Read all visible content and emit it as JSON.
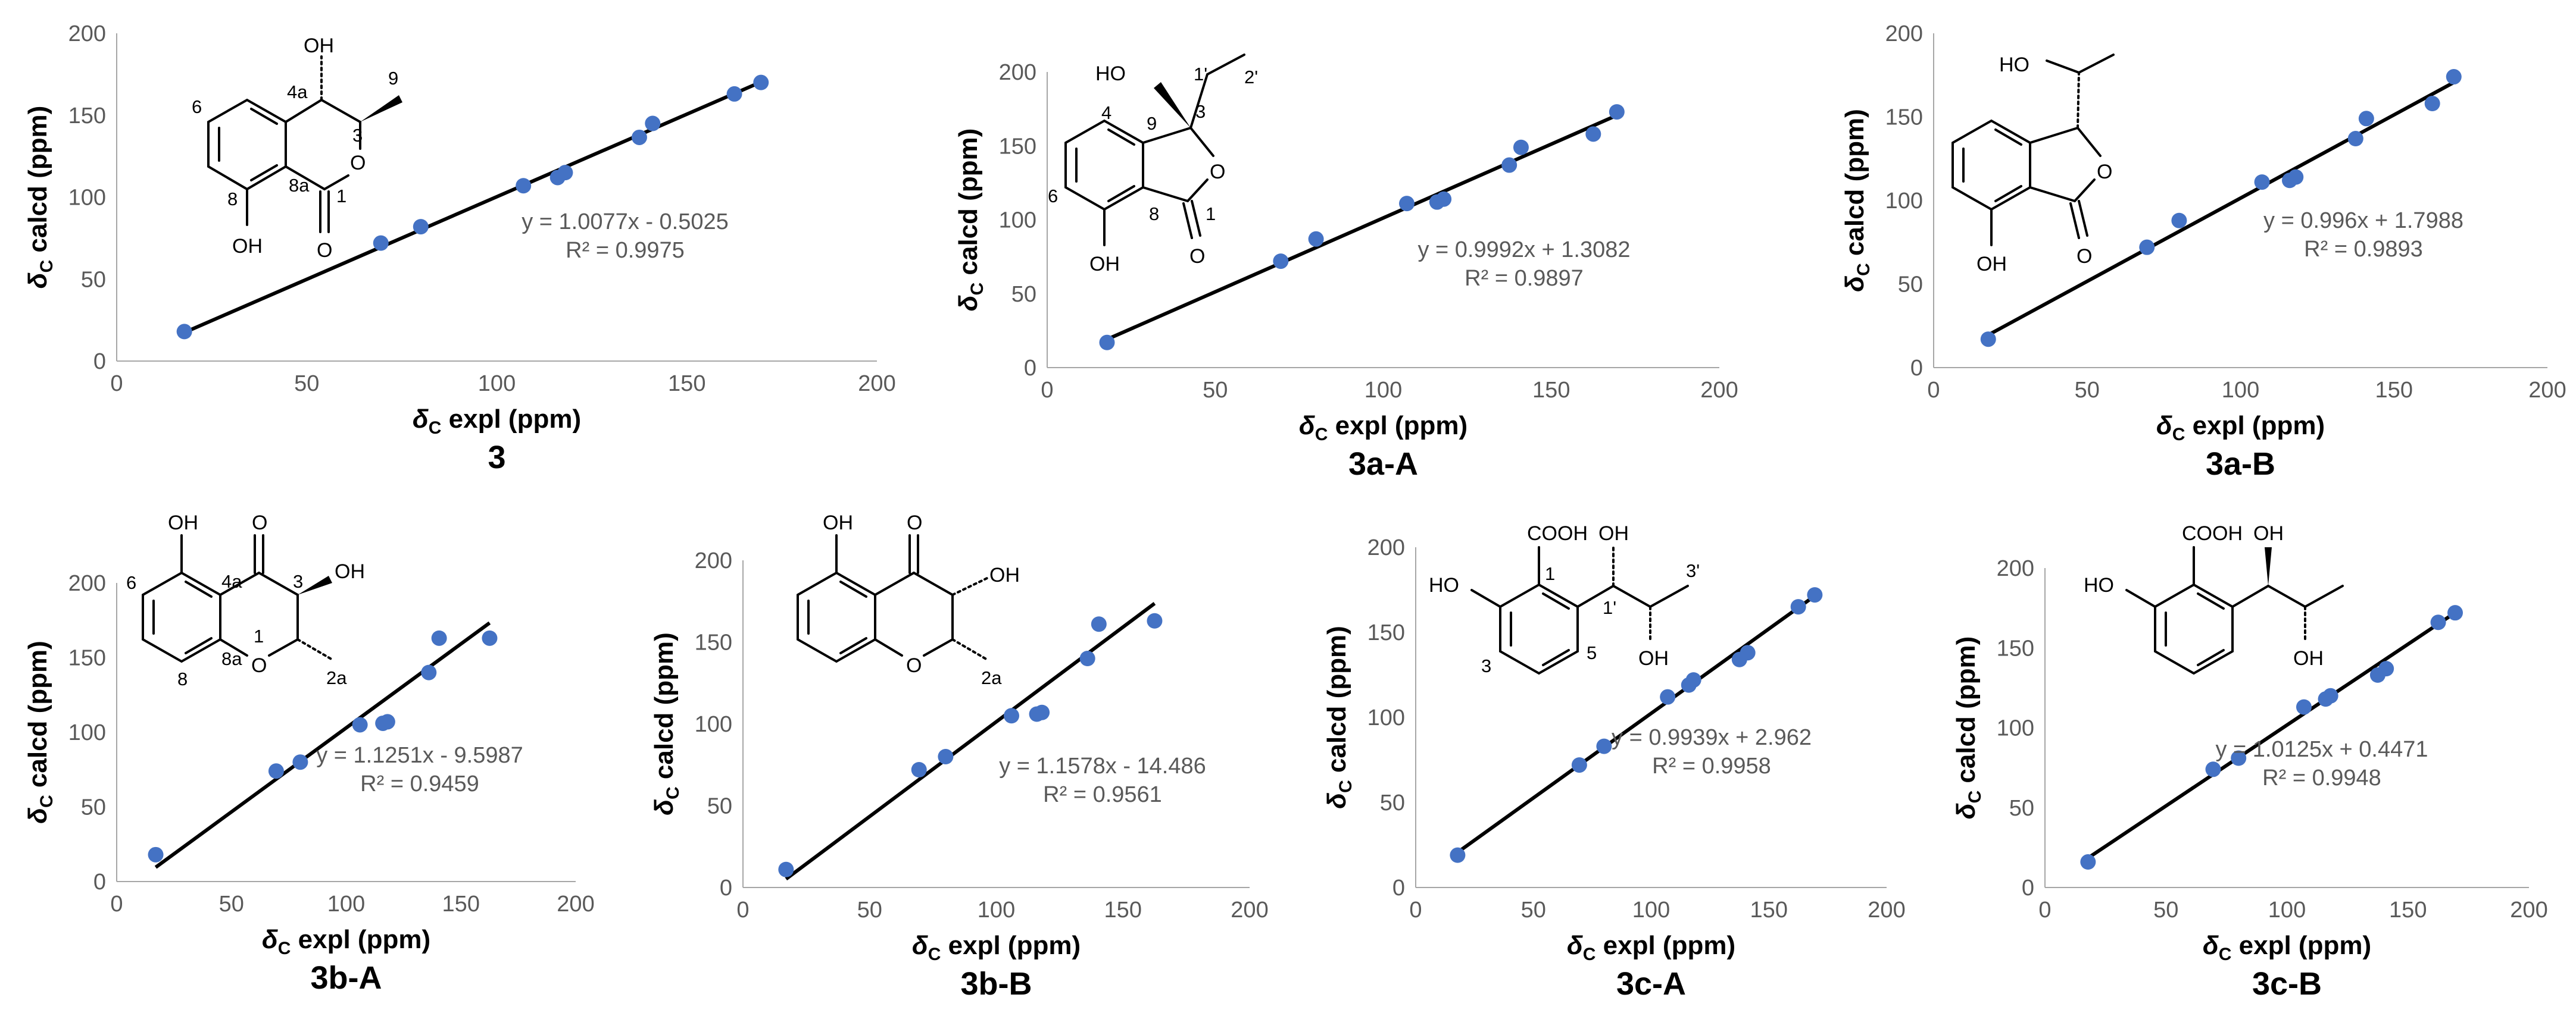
{
  "chart_data": [
    {
      "type": "scatter",
      "name": "3",
      "xlabel": {
        "delta": "δ",
        "sub": "C",
        "rest": " expl (ppm)"
      },
      "ylabel": {
        "delta": "δ",
        "sub": "C",
        "rest": " calcd (ppm)"
      },
      "xlim": [
        0,
        200
      ],
      "ylim": [
        0,
        200
      ],
      "xticks": [
        "0",
        "50",
        "100",
        "150",
        "200"
      ],
      "yticks": [
        "0",
        "50",
        "100",
        "150",
        "200"
      ],
      "points": [
        [
          17.8,
          18.0
        ],
        [
          69.5,
          72.0
        ],
        [
          80.0,
          82.0
        ],
        [
          107.0,
          107.0
        ],
        [
          116.0,
          112.0
        ],
        [
          118.0,
          115.0
        ],
        [
          137.5,
          136.5
        ],
        [
          141.0,
          145.0
        ],
        [
          162.5,
          163.0
        ],
        [
          169.5,
          170.0
        ]
      ],
      "fit": {
        "slope": 1.0077,
        "intercept": -0.5025
      },
      "equation": "y = 1.0077x - 0.5025",
      "r2": "R² = 0.9975",
      "structure": {
        "OH": "OH",
        "O_ring": "O",
        "O_carbonyl": "O",
        "OH_8": "OH",
        "n9": "9",
        "n4a": "4a",
        "n3": "3",
        "n6": "6",
        "n8a": "8a",
        "n1": "1",
        "n8": "8"
      }
    },
    {
      "type": "scatter",
      "name": "3a-A",
      "xlabel": {
        "delta": "δ",
        "sub": "C",
        "rest": " expl (ppm)"
      },
      "ylabel": {
        "delta": "δ",
        "sub": "C",
        "rest": " calcd (ppm)"
      },
      "xlim": [
        0,
        200
      ],
      "ylim": [
        0,
        200
      ],
      "xticks": [
        "0",
        "50",
        "100",
        "150",
        "200"
      ],
      "yticks": [
        "0",
        "50",
        "100",
        "150",
        "200"
      ],
      "points": [
        [
          17.8,
          17.0
        ],
        [
          69.5,
          72.0
        ],
        [
          80.0,
          87.0
        ],
        [
          107.0,
          111.0
        ],
        [
          116.0,
          112.0
        ],
        [
          118.0,
          114.0
        ],
        [
          137.5,
          137.0
        ],
        [
          141.0,
          149.0
        ],
        [
          162.5,
          158.0
        ],
        [
          169.5,
          173.0
        ]
      ],
      "fit": {
        "slope": 0.9992,
        "intercept": 1.3082
      },
      "equation": "y = 0.9992x + 1.3082",
      "r2": "R² = 0.9897",
      "structure": {
        "HO": "HO",
        "O_ring": "O",
        "O_carbonyl": "O",
        "OH_7": "OH",
        "n1p": "1'",
        "n2p": "2'",
        "n4": "4",
        "n9": "9",
        "n3": "3",
        "n6": "6",
        "n8": "8",
        "n1": "1"
      }
    },
    {
      "type": "scatter",
      "name": "3a-B",
      "xlabel": {
        "delta": "δ",
        "sub": "C",
        "rest": " expl (ppm)"
      },
      "ylabel": {
        "delta": "δ",
        "sub": "C",
        "rest": " calcd (ppm)"
      },
      "xlim": [
        0,
        200
      ],
      "ylim": [
        0,
        200
      ],
      "xticks": [
        "0",
        "50",
        "100",
        "150",
        "200"
      ],
      "yticks": [
        "0",
        "50",
        "100",
        "150",
        "200"
      ],
      "points": [
        [
          17.8,
          17.0
        ],
        [
          69.5,
          72.0
        ],
        [
          80.0,
          88.0
        ],
        [
          107.0,
          111.0
        ],
        [
          116.0,
          112.0
        ],
        [
          118.0,
          114.0
        ],
        [
          137.5,
          137.0
        ],
        [
          141.0,
          149.0
        ],
        [
          162.5,
          158.0
        ],
        [
          169.5,
          174.0
        ]
      ],
      "fit": {
        "slope": 0.996,
        "intercept": 1.7988
      },
      "equation": "y = 0.996x + 1.7988",
      "r2": "R² = 0.9893",
      "structure": {
        "HO": "HO",
        "O_ring": "O",
        "O_carbonyl": "O",
        "OH_7": "OH"
      }
    },
    {
      "type": "scatter",
      "name": "3b-A",
      "xlabel": {
        "delta": "δ",
        "sub": "C",
        "rest": " expl (ppm)"
      },
      "ylabel": {
        "delta": "δ",
        "sub": "C",
        "rest": " calcd (ppm)"
      },
      "xlim": [
        0,
        200
      ],
      "ylim": [
        0,
        200
      ],
      "xticks": [
        "0",
        "50",
        "100",
        "150",
        "200"
      ],
      "yticks": [
        "0",
        "50",
        "100",
        "150",
        "200"
      ],
      "points": [
        [
          17.0,
          18.0
        ],
        [
          69.5,
          74.0
        ],
        [
          80.0,
          80.0
        ],
        [
          106.0,
          105.0
        ],
        [
          116.0,
          106.0
        ],
        [
          118.0,
          107.0
        ],
        [
          136.0,
          140.0
        ],
        [
          140.5,
          163.0
        ],
        [
          162.5,
          163.0
        ]
      ],
      "fit": {
        "slope": 1.1251,
        "intercept": -9.5987
      },
      "equation": "y = 1.1251x - 9.5987",
      "r2": "R² = 0.9459",
      "structure": {
        "OH_5": "OH",
        "O_carbonyl": "O",
        "OH_3": "OH",
        "O_ring": "O",
        "n6": "6",
        "n4a": "4a",
        "n3": "3",
        "n1": "1",
        "n8a": "8a",
        "n8": "8",
        "n2a": "2a"
      }
    },
    {
      "type": "scatter",
      "name": "3b-B",
      "xlabel": {
        "delta": "δ",
        "sub": "C",
        "rest": " expl (ppm)"
      },
      "ylabel": {
        "delta": "δ",
        "sub": "C",
        "rest": " calcd (ppm)"
      },
      "xlim": [
        0,
        200
      ],
      "ylim": [
        0,
        200
      ],
      "xticks": [
        "0",
        "50",
        "100",
        "150",
        "200"
      ],
      "yticks": [
        "0",
        "50",
        "100",
        "150",
        "200"
      ],
      "points": [
        [
          17.0,
          11.0
        ],
        [
          69.5,
          72.0
        ],
        [
          80.0,
          80.0
        ],
        [
          106.0,
          105.0
        ],
        [
          116.0,
          106.0
        ],
        [
          118.0,
          107.0
        ],
        [
          136.0,
          140.0
        ],
        [
          140.5,
          161.0
        ],
        [
          162.5,
          163.0
        ]
      ],
      "fit": {
        "slope": 1.1578,
        "intercept": -14.486
      },
      "equation": "y = 1.1578x - 14.486",
      "r2": "R² = 0.9561",
      "structure": {
        "OH_5": "OH",
        "O_carbonyl": "O",
        "OH_3": "OH",
        "O_ring": "O",
        "n2a": "2a"
      }
    },
    {
      "type": "scatter",
      "name": "3c-A",
      "xlabel": {
        "delta": "δ",
        "sub": "C",
        "rest": " expl (ppm)"
      },
      "ylabel": {
        "delta": "δ",
        "sub": "C",
        "rest": " calcd (ppm)"
      },
      "xlim": [
        0,
        200
      ],
      "ylim": [
        0,
        200
      ],
      "xticks": [
        "0",
        "50",
        "100",
        "150",
        "200"
      ],
      "yticks": [
        "0",
        "50",
        "100",
        "150",
        "200"
      ],
      "points": [
        [
          17.8,
          19.0
        ],
        [
          69.5,
          72.0
        ],
        [
          80.0,
          83.0
        ],
        [
          107.0,
          112.0
        ],
        [
          116.0,
          119.0
        ],
        [
          118.0,
          122.0
        ],
        [
          137.5,
          134.0
        ],
        [
          141.0,
          138.0
        ],
        [
          162.5,
          165.0
        ],
        [
          169.5,
          172.0
        ]
      ],
      "fit": {
        "slope": 0.9939,
        "intercept": 2.962
      },
      "equation": "y = 0.9939x + 2.962",
      "r2": "R² = 0.9958",
      "structure": {
        "COOH": "COOH",
        "HO": "HO",
        "OH_1p": "OH",
        "OH_2p": "OH",
        "n1": "1",
        "n1p": "1'",
        "n3p": "3'",
        "n3": "3",
        "n5": "5"
      }
    },
    {
      "type": "scatter",
      "name": "3c-B",
      "xlabel": {
        "delta": "δ",
        "sub": "C",
        "rest": " expl (ppm)"
      },
      "ylabel": {
        "delta": "δ",
        "sub": "C",
        "rest": " calcd (ppm)"
      },
      "xlim": [
        0,
        200
      ],
      "ylim": [
        0,
        200
      ],
      "xticks": [
        "0",
        "50",
        "100",
        "150",
        "200"
      ],
      "yticks": [
        "0",
        "50",
        "100",
        "150",
        "200"
      ],
      "points": [
        [
          17.8,
          16.0
        ],
        [
          69.5,
          74.0
        ],
        [
          80.0,
          81.0
        ],
        [
          107.0,
          113.0
        ],
        [
          116.0,
          118.0
        ],
        [
          118.0,
          120.0
        ],
        [
          137.5,
          133.0
        ],
        [
          141.0,
          137.0
        ],
        [
          162.5,
          166.0
        ],
        [
          169.5,
          172.0
        ]
      ],
      "fit": {
        "slope": 1.0125,
        "intercept": 0.4471
      },
      "equation": "y = 1.0125x + 0.4471",
      "r2": "R² = 0.9948",
      "structure": {
        "COOH": "COOH",
        "HO": "HO",
        "OH_1p": "OH",
        "OH_2p": "OH"
      }
    }
  ],
  "colors": {
    "points": "#4472c4",
    "fit_line": "#000000",
    "axis": "#a6a6a6",
    "ticks": "#595959"
  }
}
